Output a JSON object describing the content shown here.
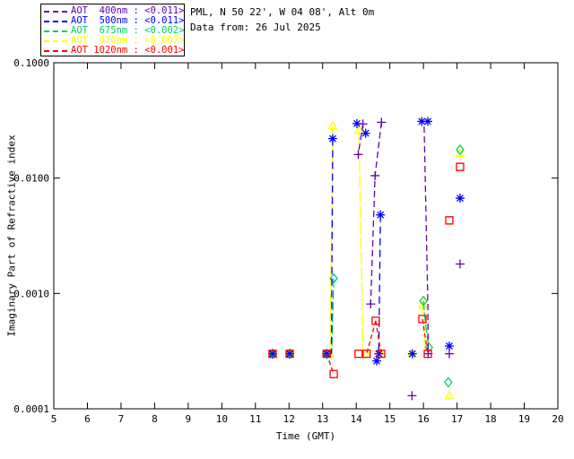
{
  "header": {
    "site": "PML, N 50 22', W 04 08', Alt 0m",
    "date_line": "Data from: 26 Jul 2025"
  },
  "legend": {
    "entries": [
      {
        "label": "AOT  400nm : <0.011>",
        "color": "#6600b4"
      },
      {
        "label": "AOT  500nm : <0.011>",
        "color": "#0000ff"
      },
      {
        "label": "AOT  675nm : <0.002>",
        "color": "#00d060"
      },
      {
        "label": "AOT  870nm : <0.007>",
        "color": "#ffff00"
      },
      {
        "label": "AOT 1020nm : <0.001>",
        "color": "#ff0000"
      }
    ]
  },
  "chart_data": {
    "type": "scatter",
    "xlabel": "Time (GMT)",
    "ylabel": "Imaginary Part of Refractive index",
    "xlim": [
      5,
      20
    ],
    "ylim": [
      0.0001,
      0.1
    ],
    "yscale": "log",
    "grid": false,
    "legend_position": "top-left-outside",
    "xticks": [
      5,
      6,
      7,
      8,
      9,
      10,
      11,
      12,
      13,
      14,
      15,
      16,
      17,
      18,
      19,
      20
    ],
    "yticks": [
      {
        "v": 0.1,
        "label": "0.1000"
      },
      {
        "v": 0.01,
        "label": "0.0100"
      },
      {
        "v": 0.001,
        "label": "0.0010"
      },
      {
        "v": 0.0001,
        "label": "0.0001"
      }
    ],
    "series": [
      {
        "name": "AOT 870nm",
        "wavelength": "870nm",
        "aot_value": "<0.007>",
        "color": "#ffff00",
        "marker": "triangle",
        "dash": "14,3",
        "lines": [
          [
            [
              13.3,
              0.0285
            ],
            [
              13.22,
              0.0003
            ]
          ],
          [
            [
              14.08,
              0.026
            ],
            [
              14.2,
              0.0003
            ]
          ],
          [
            [
              15.98,
              0.0008
            ],
            [
              16.06,
              0.00032
            ]
          ]
        ],
        "points": [
          [
            13.3,
            0.0285
          ],
          [
            14.08,
            0.026
          ],
          [
            15.98,
            0.0008
          ],
          [
            15.67,
            0.0003
          ],
          [
            16.77,
            0.00013
          ],
          [
            17.09,
            0.0164
          ],
          [
            11.51,
            0.0003
          ],
          [
            12.02,
            0.0003
          ],
          [
            13.2,
            0.0003
          ],
          [
            14.31,
            0.0003
          ],
          [
            14.74,
            0.0003
          ]
        ]
      },
      {
        "name": "AOT 675nm",
        "wavelength": "675nm",
        "aot_value": "<0.002>",
        "color": "#00d060",
        "marker": "diamond",
        "dash": "10,3",
        "lines": [
          [
            [
              13.33,
              0.00135
            ],
            [
              13.27,
              0.0003
            ]
          ],
          [
            [
              16.0,
              0.00086
            ],
            [
              16.06,
              0.00055
            ],
            [
              16.16,
              0.00034
            ]
          ]
        ],
        "points": [
          [
            13.33,
            0.00135
          ],
          [
            16.0,
            0.00086
          ],
          [
            16.16,
            0.00034
          ],
          [
            16.74,
            0.00017
          ],
          [
            17.09,
            0.0176
          ],
          [
            11.51,
            0.0003
          ],
          [
            12.02,
            0.0003
          ],
          [
            13.12,
            0.0003
          ]
        ]
      },
      {
        "name": "AOT 500nm",
        "wavelength": "500nm",
        "aot_value": "<0.011>",
        "color": "#0000ff",
        "marker": "asterisk",
        "dash": "8,5",
        "lines": [
          [
            [
              13.3,
              0.022
            ],
            [
              13.26,
              0.0003
            ]
          ],
          [
            [
              14.72,
              0.0048
            ],
            [
              14.67,
              0.0003
            ]
          ]
        ],
        "points": [
          [
            13.3,
            0.022
          ],
          [
            14.02,
            0.0297
          ],
          [
            14.28,
            0.0245
          ],
          [
            14.72,
            0.0048
          ],
          [
            14.61,
            0.00026
          ],
          [
            15.67,
            0.0003
          ],
          [
            15.95,
            0.031
          ],
          [
            16.13,
            0.031
          ],
          [
            16.77,
            0.00035
          ],
          [
            17.09,
            0.0067
          ],
          [
            11.51,
            0.0003
          ],
          [
            12.02,
            0.0003
          ],
          [
            13.12,
            0.0003
          ],
          [
            14.67,
            0.0003
          ]
        ]
      },
      {
        "name": "AOT 400nm",
        "wavelength": "400nm",
        "aot_value": "<0.011>",
        "color": "#6600b4",
        "marker": "plus",
        "dash": "7,4",
        "lines": [
          [
            [
              14.2,
              0.0295
            ],
            [
              14.06,
              0.016
            ]
          ],
          [
            [
              14.75,
              0.0305
            ],
            [
              14.56,
              0.0105
            ],
            [
              14.43,
              0.00081
            ]
          ],
          [
            [
              16.02,
              0.028
            ],
            [
              16.13,
              0.00086
            ],
            [
              16.14,
              0.0003
            ]
          ]
        ],
        "points": [
          [
            14.2,
            0.0295
          ],
          [
            14.06,
            0.016
          ],
          [
            14.75,
            0.0305
          ],
          [
            14.56,
            0.0105
          ],
          [
            14.43,
            0.00081
          ],
          [
            15.66,
            0.00013
          ],
          [
            16.14,
            0.0003
          ],
          [
            16.77,
            0.0003
          ],
          [
            17.09,
            0.0018
          ]
        ]
      },
      {
        "name": "AOT 1020nm",
        "wavelength": "1020nm",
        "aot_value": "<0.001>",
        "color": "#ff0000",
        "marker": "square",
        "dash": "5,3",
        "lines": [
          [
            [
              13.12,
              0.0003
            ],
            [
              13.33,
              0.0002
            ]
          ],
          [
            [
              14.58,
              0.00058
            ],
            [
              14.31,
              0.0003
            ]
          ],
          [
            [
              14.58,
              0.00058
            ],
            [
              14.74,
              0.0003
            ]
          ],
          [
            [
              15.97,
              0.0006
            ],
            [
              16.13,
              0.0003
            ]
          ]
        ],
        "points": [
          [
            11.51,
            0.0003
          ],
          [
            12.02,
            0.0003
          ],
          [
            13.12,
            0.0003
          ],
          [
            13.33,
            0.0002
          ],
          [
            14.07,
            0.0003
          ],
          [
            14.31,
            0.0003
          ],
          [
            14.58,
            0.00058
          ],
          [
            14.74,
            0.0003
          ],
          [
            15.97,
            0.0006
          ],
          [
            16.13,
            0.0003
          ],
          [
            16.77,
            0.0043
          ],
          [
            17.09,
            0.0125
          ]
        ]
      }
    ]
  }
}
